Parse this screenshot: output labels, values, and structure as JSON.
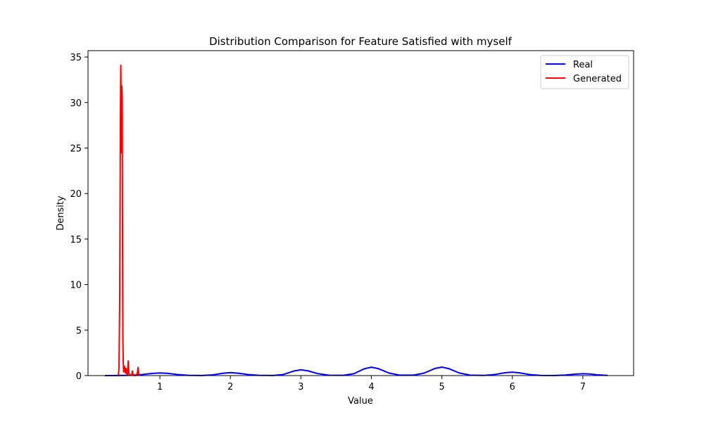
{
  "chart_data": {
    "type": "line",
    "title": "Distribution Comparison for Feature Satisfied with myself",
    "xlabel": "Value",
    "ylabel": "Density",
    "xlim": [
      -0.02,
      7.72
    ],
    "ylim": [
      0,
      35.7
    ],
    "xticks": [
      1,
      2,
      3,
      4,
      5,
      6,
      7
    ],
    "yticks": [
      0,
      5,
      10,
      15,
      20,
      25,
      30,
      35
    ],
    "grid": false,
    "legend_position": "top-right",
    "series": [
      {
        "name": "Real",
        "color": "#0000ff",
        "points": [
          [
            0.22,
            0.0
          ],
          [
            0.4,
            0.01
          ],
          [
            0.6,
            0.04
          ],
          [
            0.75,
            0.12
          ],
          [
            0.9,
            0.24
          ],
          [
            1.0,
            0.29
          ],
          [
            1.1,
            0.25
          ],
          [
            1.25,
            0.12
          ],
          [
            1.4,
            0.03
          ],
          [
            1.6,
            0.01
          ],
          [
            1.75,
            0.08
          ],
          [
            1.9,
            0.26
          ],
          [
            2.0,
            0.33
          ],
          [
            2.1,
            0.27
          ],
          [
            2.25,
            0.12
          ],
          [
            2.4,
            0.03
          ],
          [
            2.6,
            0.01
          ],
          [
            2.75,
            0.12
          ],
          [
            2.9,
            0.5
          ],
          [
            3.0,
            0.64
          ],
          [
            3.1,
            0.52
          ],
          [
            3.25,
            0.2
          ],
          [
            3.4,
            0.04
          ],
          [
            3.6,
            0.03
          ],
          [
            3.75,
            0.2
          ],
          [
            3.9,
            0.75
          ],
          [
            4.0,
            0.92
          ],
          [
            4.1,
            0.76
          ],
          [
            4.25,
            0.28
          ],
          [
            4.4,
            0.05
          ],
          [
            4.6,
            0.05
          ],
          [
            4.75,
            0.28
          ],
          [
            4.9,
            0.78
          ],
          [
            5.0,
            0.93
          ],
          [
            5.1,
            0.76
          ],
          [
            5.25,
            0.28
          ],
          [
            5.4,
            0.05
          ],
          [
            5.6,
            0.02
          ],
          [
            5.75,
            0.12
          ],
          [
            5.9,
            0.32
          ],
          [
            6.0,
            0.38
          ],
          [
            6.1,
            0.3
          ],
          [
            6.25,
            0.11
          ],
          [
            6.4,
            0.02
          ],
          [
            6.6,
            0.01
          ],
          [
            6.75,
            0.06
          ],
          [
            6.9,
            0.16
          ],
          [
            7.0,
            0.2
          ],
          [
            7.1,
            0.17
          ],
          [
            7.2,
            0.09
          ],
          [
            7.35,
            0.02
          ]
        ]
      },
      {
        "name": "Generated",
        "color": "#ff0000",
        "points": [
          [
            0.41,
            0.0
          ],
          [
            0.42,
            0.9
          ],
          [
            0.43,
            9.0
          ],
          [
            0.44,
            29.0
          ],
          [
            0.445,
            34.1
          ],
          [
            0.45,
            30.0
          ],
          [
            0.455,
            24.5
          ],
          [
            0.46,
            31.8
          ],
          [
            0.465,
            30.5
          ],
          [
            0.47,
            14.0
          ],
          [
            0.475,
            4.0
          ],
          [
            0.48,
            1.6
          ],
          [
            0.485,
            0.4
          ],
          [
            0.49,
            0.9
          ],
          [
            0.495,
            0.5
          ],
          [
            0.5,
            1.0
          ],
          [
            0.51,
            0.3
          ],
          [
            0.52,
            0.8
          ],
          [
            0.53,
            0.2
          ],
          [
            0.54,
            0.1
          ],
          [
            0.55,
            1.6
          ],
          [
            0.56,
            0.3
          ],
          [
            0.57,
            0.1
          ],
          [
            0.58,
            0.05
          ],
          [
            0.6,
            0.05
          ],
          [
            0.61,
            0.5
          ],
          [
            0.62,
            0.05
          ],
          [
            0.64,
            0.0
          ],
          [
            0.66,
            0.05
          ],
          [
            0.68,
            0.25
          ],
          [
            0.69,
            0.9
          ],
          [
            0.7,
            0.2
          ],
          [
            0.71,
            0.0
          ]
        ]
      }
    ]
  }
}
